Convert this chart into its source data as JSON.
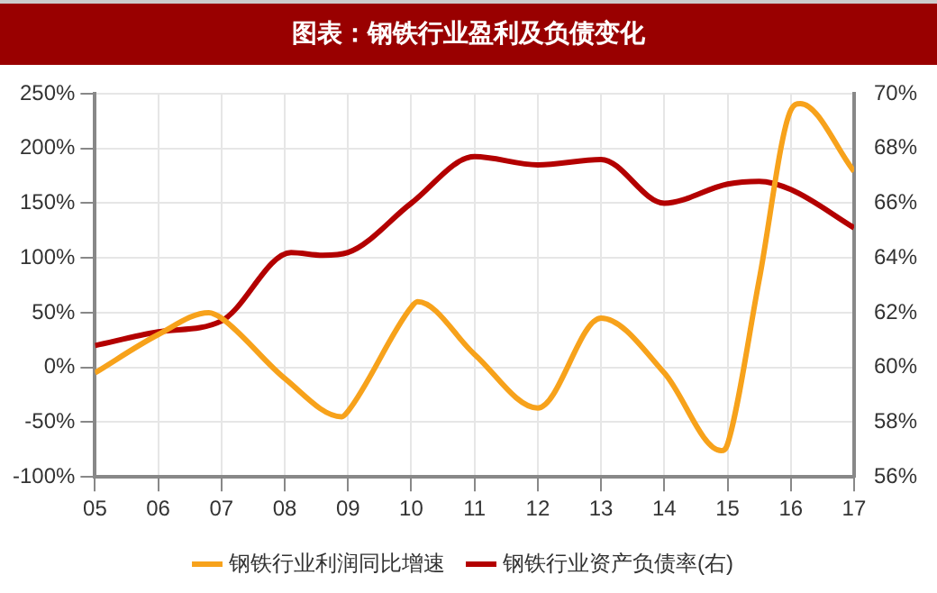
{
  "chart_data": {
    "type": "line",
    "title": "图表：钢铁行业盈利及负债变化",
    "x": [
      5,
      6,
      6.8,
      7,
      8,
      8.9,
      9,
      10,
      10.1,
      11,
      12,
      13,
      14,
      14.9,
      15,
      15.5,
      16,
      16.15,
      17
    ],
    "xlim": [
      5,
      17
    ],
    "xticks": [
      {
        "value": 5,
        "label": "05"
      },
      {
        "value": 6,
        "label": "06"
      },
      {
        "value": 7,
        "label": "07"
      },
      {
        "value": 8,
        "label": "08"
      },
      {
        "value": 9,
        "label": "09"
      },
      {
        "value": 10,
        "label": "10"
      },
      {
        "value": 11,
        "label": "11"
      },
      {
        "value": 12,
        "label": "12"
      },
      {
        "value": 13,
        "label": "13"
      },
      {
        "value": 14,
        "label": "14"
      },
      {
        "value": 15,
        "label": "15"
      },
      {
        "value": 16,
        "label": "16"
      },
      {
        "value": 17,
        "label": "17"
      }
    ],
    "series": [
      {
        "name": "钢铁行业利润同比增速",
        "color": "#f7a21b",
        "values": [
          -5,
          30,
          50,
          45,
          -10,
          -45,
          -40,
          55,
          60,
          12,
          -37,
          45,
          -5,
          -76,
          -70,
          80,
          235,
          241,
          179
        ]
      },
      {
        "name": "钢铁行业资产负债率(右)",
        "color": "#b30000",
        "axis": "y2",
        "x": [
          5,
          6,
          7,
          8.1,
          8.6,
          9,
          10,
          11,
          12,
          13,
          14,
          15,
          15.5,
          16,
          17
        ],
        "values": [
          60.8,
          61.3,
          61.7,
          64.2,
          64.1,
          64.2,
          66.0,
          67.7,
          67.4,
          67.6,
          66.0,
          66.7,
          66.8,
          66.5,
          65.1
        ]
      }
    ],
    "ylim": [
      -100,
      250
    ],
    "yticks": [
      {
        "value": -100,
        "label": "-100%"
      },
      {
        "value": -50,
        "label": "-50%"
      },
      {
        "value": 0,
        "label": "0%"
      },
      {
        "value": 50,
        "label": "50%"
      },
      {
        "value": 100,
        "label": "100%"
      },
      {
        "value": 150,
        "label": "150%"
      },
      {
        "value": 200,
        "label": "200%"
      },
      {
        "value": 250,
        "label": "250%"
      }
    ],
    "y2lim": [
      56,
      70
    ],
    "y2ticks": [
      {
        "value": 56,
        "label": "56%"
      },
      {
        "value": 58,
        "label": "58%"
      },
      {
        "value": 60,
        "label": "60%"
      },
      {
        "value": 62,
        "label": "62%"
      },
      {
        "value": 64,
        "label": "64%"
      },
      {
        "value": 66,
        "label": "66%"
      },
      {
        "value": 68,
        "label": "68%"
      },
      {
        "value": 70,
        "label": "70%"
      }
    ],
    "grid": true,
    "legend": "bottom",
    "marker": "none",
    "line_style": "solid"
  }
}
